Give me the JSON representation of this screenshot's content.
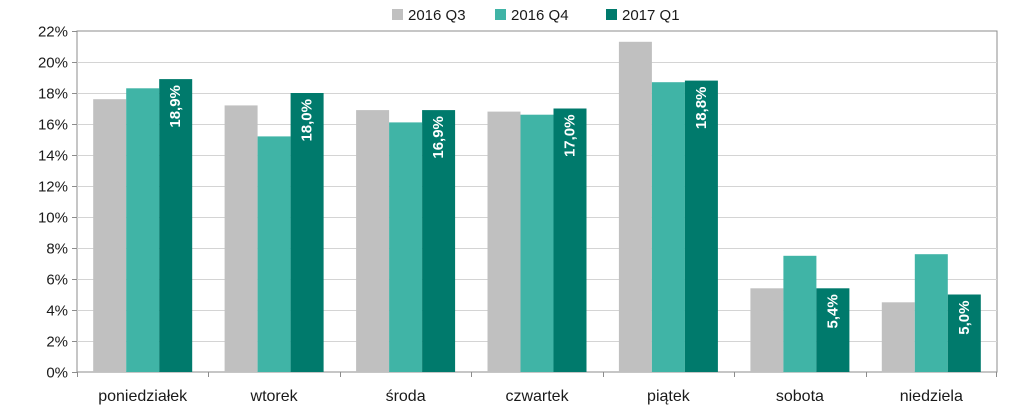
{
  "chart_data": {
    "type": "bar",
    "categories": [
      "poniedziałek",
      "wtorek",
      "środa",
      "czwartek",
      "piątek",
      "sobota",
      "niedziela"
    ],
    "series": [
      {
        "name": "2016 Q3",
        "color": "#c0c0c0",
        "values": [
          17.6,
          17.2,
          16.9,
          16.8,
          21.3,
          5.4,
          4.5
        ]
      },
      {
        "name": "2016 Q4",
        "color": "#40b4a6",
        "values": [
          18.3,
          15.2,
          16.1,
          16.6,
          18.7,
          7.5,
          7.6
        ]
      },
      {
        "name": "2017 Q1",
        "color": "#007a6c",
        "values": [
          18.9,
          18.0,
          16.9,
          17.0,
          18.8,
          5.4,
          5.0
        ],
        "data_labels": [
          "18,9%",
          "18,0%",
          "16,9%",
          "17,0%",
          "18,8%",
          "5,4%",
          "5,0%"
        ]
      }
    ],
    "ylim": [
      0,
      22
    ],
    "y_ticks": [
      0,
      2,
      4,
      6,
      8,
      10,
      12,
      14,
      16,
      18,
      20,
      22
    ],
    "y_tick_labels": [
      "0%",
      "2%",
      "4%",
      "6%",
      "8%",
      "10%",
      "12%",
      "14%",
      "16%",
      "18%",
      "20%",
      "22%"
    ],
    "grid": true,
    "legend_position": "top-center",
    "title": "",
    "xlabel": "",
    "ylabel": ""
  }
}
